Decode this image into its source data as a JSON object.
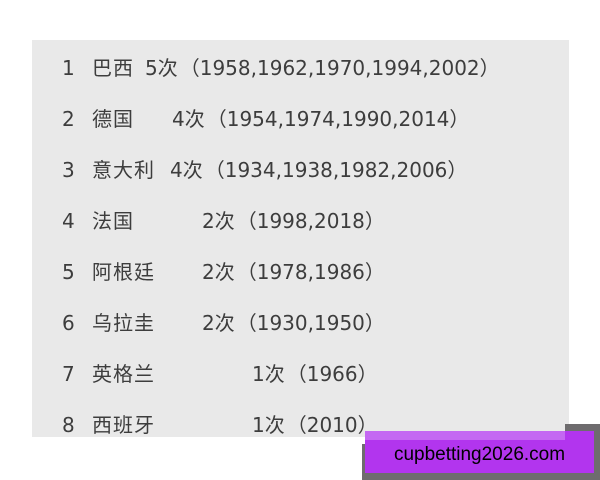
{
  "colors": {
    "page_bg": "#ffffff",
    "panel_bg": "#e9e9e9",
    "text": "#3d3d3d",
    "watermark_bg": "#b235ee",
    "watermark_highlight": "#c468f2",
    "watermark_shadow": "#6e6c6e",
    "watermark_text_color": "#000000"
  },
  "list": {
    "rows": [
      {
        "rank": "1",
        "country": "巴西",
        "wins": "5次",
        "years": "（1958,1962,1970,1994,2002）"
      },
      {
        "rank": "2",
        "country": "德国",
        "wins": "4次",
        "years": "（1954,1974,1990,2014）"
      },
      {
        "rank": "3",
        "country": "意大利",
        "wins": "4次",
        "years": "（1934,1938,1982,2006）"
      },
      {
        "rank": "4",
        "country": "法国",
        "wins": "2次",
        "years": "（1998,2018）"
      },
      {
        "rank": "5",
        "country": "阿根廷",
        "wins": "2次",
        "years": "（1978,1986）"
      },
      {
        "rank": "6",
        "country": "乌拉圭",
        "wins": "2次",
        "years": "（1930,1950）"
      },
      {
        "rank": "7",
        "country": "英格兰",
        "wins": "1次",
        "years": "（1966）"
      },
      {
        "rank": "8",
        "country": "西班牙",
        "wins": "1次",
        "years": "（2010）"
      }
    ]
  },
  "watermark": {
    "text": "cupbetting2026.com"
  }
}
